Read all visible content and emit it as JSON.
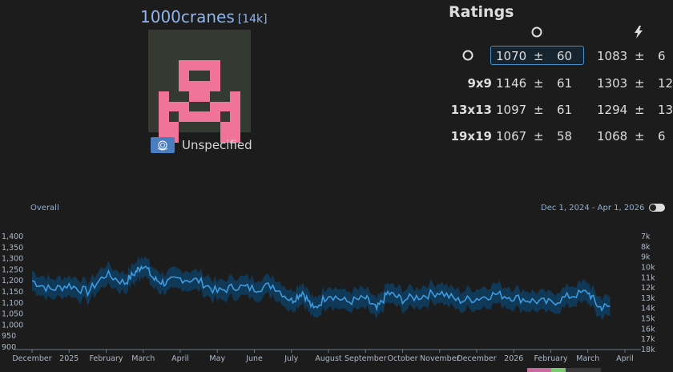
{
  "player": {
    "name": "1000cranes",
    "rank": "[14k]",
    "country_label": "Unspecified",
    "flag_icon": "un-flag-icon"
  },
  "ratings": {
    "title": "Ratings",
    "column_icons": [
      "circle-icon",
      "lightning-icon"
    ],
    "rows": [
      {
        "label_icon": "circle-icon",
        "label": "",
        "live_rating": "1070",
        "live_dev": "60",
        "blitz_rating": "1083",
        "blitz_dev": "6",
        "selected": true
      },
      {
        "label": "9x9",
        "live_rating": "1146",
        "live_dev": "61",
        "blitz_rating": "1303",
        "blitz_dev": "12"
      },
      {
        "label": "13x13",
        "live_rating": "1097",
        "live_dev": "61",
        "blitz_rating": "1294",
        "blitz_dev": "13"
      },
      {
        "label": "19x19",
        "live_rating": "1067",
        "live_dev": "58",
        "blitz_rating": "1068",
        "blitz_dev": "6"
      }
    ],
    "pm_symbol": "±"
  },
  "chart_header": {
    "overall_label": "Overall",
    "date_range": "Dec 1, 2024 - Apr 1, 2026"
  },
  "chart_data": {
    "type": "line",
    "left_axis_ticks": [
      "1,400",
      "1,350",
      "1,300",
      "1,250",
      "1,200",
      "1,150",
      "1,100",
      "1,050",
      "1,000",
      "950",
      "900"
    ],
    "left_axis_values": [
      1400,
      1350,
      1300,
      1250,
      1200,
      1150,
      1100,
      1050,
      1000,
      950,
      900
    ],
    "right_axis_ticks": [
      "7k",
      "8k",
      "9k",
      "10k",
      "11k",
      "12k",
      "13k",
      "14k",
      "15k",
      "16k",
      "17k",
      "18k"
    ],
    "x_tick_labels": [
      "December",
      "2025",
      "February",
      "March",
      "April",
      "May",
      "June",
      "July",
      "August",
      "September",
      "October",
      "November",
      "December",
      "2026",
      "February",
      "March",
      "April"
    ],
    "x_tick_months": [
      0,
      1,
      2,
      3,
      4,
      5,
      6,
      7,
      8,
      9,
      10,
      11,
      12,
      13,
      14,
      15,
      16
    ],
    "ylim": [
      900,
      1400
    ],
    "series": [
      {
        "x_months": [
          0.0,
          0.5,
          1.0,
          1.5,
          2.0,
          2.5,
          2.8,
          3.0,
          3.3,
          3.6,
          4.0,
          4.5,
          5.0,
          5.5,
          6.0,
          6.5,
          7.0,
          7.3,
          7.6,
          8.0,
          8.5,
          9.0,
          9.3,
          9.6,
          10.0,
          10.5,
          11.0,
          11.5,
          12.0,
          12.5,
          13.0,
          13.5,
          14.0,
          14.5,
          15.0,
          15.3,
          15.6
        ],
        "values": [
          1200,
          1160,
          1180,
          1150,
          1230,
          1190,
          1240,
          1275,
          1205,
          1190,
          1210,
          1200,
          1150,
          1175,
          1165,
          1180,
          1110,
          1150,
          1070,
          1140,
          1105,
          1120,
          1070,
          1145,
          1115,
          1130,
          1150,
          1110,
          1120,
          1140,
          1125,
          1110,
          1100,
          1130,
          1150,
          1080,
          1085
        ],
        "band": 45
      }
    ]
  },
  "colors": {
    "background": "#1c1c1c",
    "line": "#3d9be0",
    "band": "#0f3c5e",
    "name": "#8fb6ef",
    "avatar_bg": "#343a31",
    "avatar_fg": "#f0739a",
    "flag": "#4a7ec0"
  }
}
